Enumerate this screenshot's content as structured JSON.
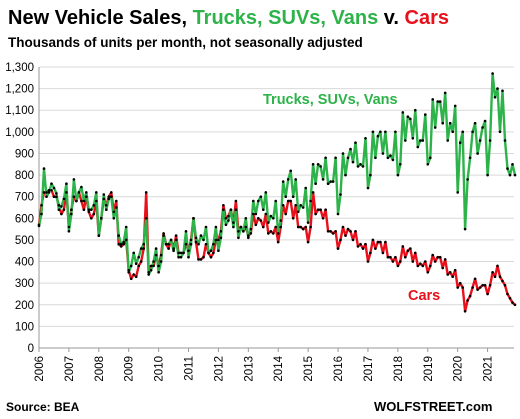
{
  "title": {
    "part1": "New Vehicle Sales, ",
    "part2": "Trucks, SUVs, Vans",
    "part3": " v. ",
    "part4": "Cars"
  },
  "subtitle": "Thousands of units per month, not seasonally adjusted",
  "source": "Source: BEA",
  "brand": "WOLFSTREET.com",
  "colors": {
    "trucks": "#2db34a",
    "cars": "#e8101b",
    "points": "#000000",
    "grid": "#d9d9d9",
    "axis": "#999999"
  },
  "chart_data": {
    "type": "line",
    "ylim": [
      0,
      1300
    ],
    "yticks": [
      "0",
      "100",
      "200",
      "300",
      "400",
      "500",
      "600",
      "700",
      "800",
      "900",
      "1,000",
      "1,100",
      "1,200",
      "1,300"
    ],
    "xticks": [
      "2006",
      "2007",
      "2008",
      "2009",
      "2010",
      "2011",
      "2012",
      "2013",
      "2014",
      "2015",
      "2016",
      "2017",
      "2018",
      "2019",
      "2020",
      "2021"
    ],
    "grid": true,
    "x_start_year": 2006,
    "series": [
      {
        "name": "Trucks, SUVs, Vans",
        "label": "Trucks, SUVs, Vans",
        "color": "#2db34a",
        "values": [
          565,
          620,
          830,
          700,
          720,
          760,
          740,
          715,
          640,
          655,
          690,
          760,
          540,
          620,
          780,
          680,
          720,
          745,
          680,
          720,
          640,
          640,
          660,
          720,
          520,
          600,
          710,
          640,
          690,
          700,
          600,
          650,
          520,
          480,
          490,
          560,
          350,
          380,
          440,
          390,
          420,
          460,
          480,
          600,
          340,
          360,
          400,
          460,
          350,
          400,
          520,
          480,
          480,
          500,
          450,
          500,
          420,
          420,
          440,
          540,
          420,
          480,
          600,
          510,
          480,
          520,
          500,
          560,
          440,
          450,
          480,
          560,
          450,
          510,
          640,
          570,
          590,
          640,
          560,
          640,
          510,
          560,
          540,
          600,
          510,
          550,
          680,
          620,
          680,
          700,
          640,
          720,
          580,
          610,
          600,
          680,
          530,
          590,
          770,
          700,
          780,
          820,
          700,
          780,
          630,
          660,
          650,
          740,
          580,
          680,
          850,
          760,
          850,
          840,
          780,
          880,
          760,
          770,
          770,
          880,
          620,
          710,
          900,
          800,
          880,
          920,
          860,
          950,
          840,
          850,
          840,
          970,
          740,
          800,
          1000,
          880,
          980,
          1000,
          900,
          1000,
          880,
          890,
          870,
          1000,
          800,
          850,
          1090,
          960,
          1070,
          1060,
          970,
          1100,
          930,
          960,
          960,
          1080,
          850,
          880,
          1150,
          1020,
          1140,
          1140,
          1040,
          1180,
          960,
          1040,
          1000,
          1120,
          720,
          950,
          1000,
          550,
          780,
          880,
          1000,
          1040,
          900,
          960,
          1020,
          1050,
          800,
          960,
          1270,
          1160,
          1200,
          1000,
          1190,
          960,
          830,
          800,
          850,
          800
        ]
      },
      {
        "name": "Cars",
        "label": "Cars",
        "color": "#e8101b",
        "values": [
          570,
          660,
          720,
          720,
          730,
          730,
          700,
          700,
          660,
          620,
          640,
          720,
          560,
          640,
          700,
          680,
          720,
          680,
          640,
          700,
          630,
          600,
          620,
          680,
          520,
          600,
          690,
          660,
          700,
          720,
          630,
          680,
          480,
          470,
          480,
          500,
          360,
          320,
          340,
          330,
          380,
          400,
          460,
          720,
          350,
          380,
          380,
          430,
          380,
          430,
          530,
          480,
          460,
          500,
          460,
          520,
          440,
          440,
          440,
          480,
          450,
          500,
          600,
          490,
          410,
          410,
          420,
          480,
          440,
          420,
          440,
          500,
          500,
          540,
          660,
          600,
          610,
          640,
          580,
          680,
          540,
          560,
          540,
          560,
          520,
          530,
          620,
          570,
          600,
          590,
          560,
          620,
          530,
          540,
          530,
          560,
          490,
          560,
          660,
          620,
          680,
          680,
          600,
          660,
          560,
          560,
          550,
          560,
          490,
          560,
          720,
          620,
          640,
          640,
          600,
          640,
          540,
          540,
          530,
          540,
          460,
          500,
          560,
          520,
          550,
          540,
          500,
          540,
          470,
          480,
          460,
          480,
          400,
          440,
          500,
          460,
          490,
          490,
          440,
          490,
          420,
          420,
          400,
          420,
          380,
          400,
          470,
          420,
          450,
          460,
          400,
          440,
          380,
          390,
          380,
          400,
          350,
          380,
          430,
          400,
          420,
          420,
          370,
          410,
          340,
          350,
          330,
          360,
          280,
          300,
          280,
          170,
          220,
          240,
          280,
          320,
          270,
          280,
          290,
          290,
          250,
          290,
          350,
          330,
          380,
          330,
          310,
          290,
          250,
          230,
          210,
          200
        ]
      }
    ]
  }
}
